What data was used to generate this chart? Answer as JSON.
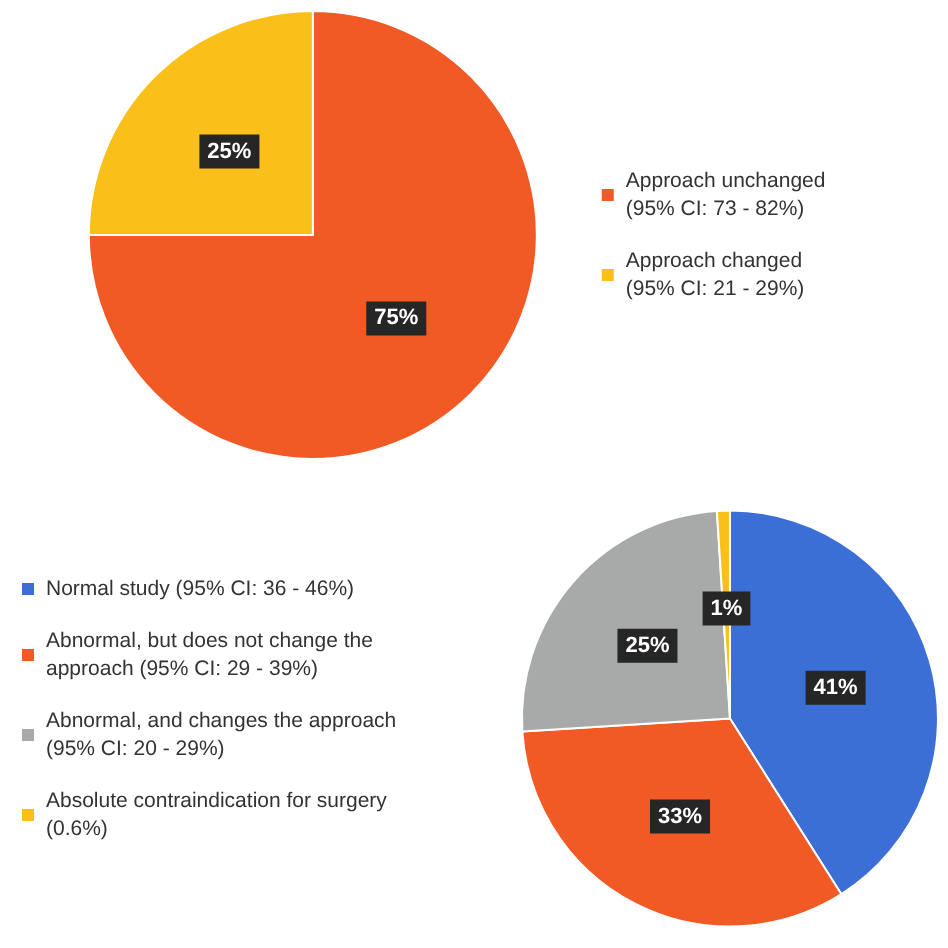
{
  "chart_data": [
    {
      "type": "pie",
      "categories": [
        "Approach unchanged (95% CI: 73 - 82%)",
        "Approach changed (95% CI: 21 - 29%)"
      ],
      "values": [
        75,
        25
      ],
      "colors": [
        "#f15a24",
        "#fbbf1a"
      ],
      "legend": "right",
      "value_labels": [
        "75%",
        "25%"
      ]
    },
    {
      "type": "pie",
      "categories": [
        "Normal study (95% CI: 36 - 46%)",
        "Abnormal, but does not change the approach (95% CI: 29 - 39%)",
        "Abnormal, and changes the approach (95% CI: 20 - 29%)",
        "Absolute contraindication for surgery (0.6%)"
      ],
      "values": [
        41,
        33,
        25,
        1
      ],
      "colors": [
        "#3b6fd6",
        "#f15a24",
        "#a8aaa9",
        "#fbbf1a"
      ],
      "legend": "left",
      "value_labels": [
        "41%",
        "33%",
        "25%",
        "1%"
      ]
    }
  ]
}
